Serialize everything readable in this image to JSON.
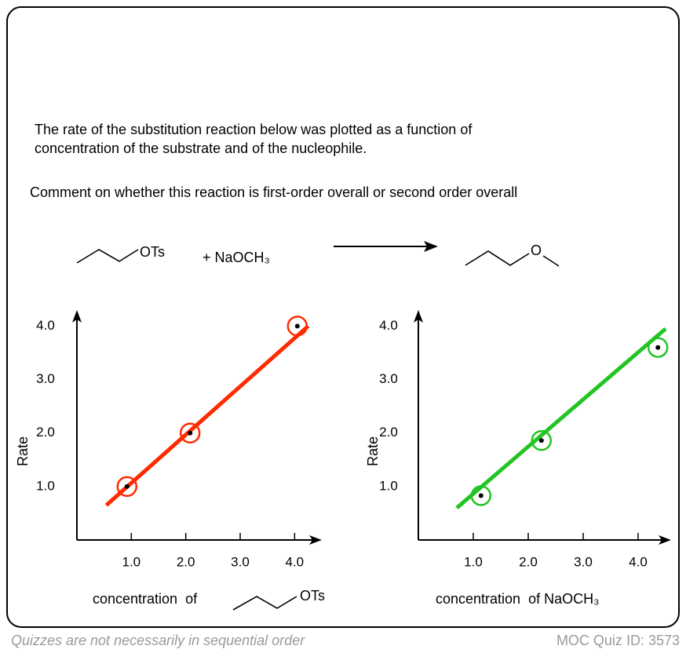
{
  "question": [
    "The rate of the substitution reaction below was plotted as a function of",
    "concentration of the substrate and of the nucleophile."
  ],
  "prompt": "Comment on whether this reaction is first-order overall or second order overall",
  "reaction": {
    "substrate_group": "OTs",
    "reagent": "+ NaOCH₃",
    "product_atom": "O"
  },
  "chart_data": [
    {
      "type": "scatter",
      "y_label": "Rate",
      "x_label": "concentration  of",
      "x_label_group": "OTs",
      "x": [
        0.92,
        2.08,
        4.05
      ],
      "values": [
        1.0,
        2.0,
        4.0
      ],
      "color": "#ff2a00",
      "fit_line": {
        "x": [
          0.54,
          4.25
        ],
        "y": [
          0.65,
          4.0
        ]
      },
      "xlim": [
        0,
        4.5
      ],
      "ylim": [
        0,
        4.3
      ],
      "xticks": [
        {
          "value": 1,
          "label": "1.0"
        },
        {
          "value": 2,
          "label": "2.0"
        },
        {
          "value": 3,
          "label": "3.0"
        },
        {
          "value": 4,
          "label": "4.0"
        }
      ],
      "yticks": [
        {
          "value": 1,
          "label": "1.0"
        },
        {
          "value": 2,
          "label": "2.0"
        },
        {
          "value": 3,
          "label": "3.0"
        },
        {
          "value": 4,
          "label": "4.0"
        }
      ]
    },
    {
      "type": "scatter",
      "y_label": "Rate",
      "x_label": "concentration  of NaOCH₃",
      "x": [
        1.14,
        2.24,
        4.36
      ],
      "values": [
        0.83,
        1.86,
        3.6
      ],
      "color": "#22c422",
      "fit_line": {
        "x": [
          0.7,
          4.5
        ],
        "y": [
          0.6,
          3.95
        ]
      },
      "xlim": [
        0,
        4.6
      ],
      "ylim": [
        0,
        4.3
      ],
      "xticks": [
        {
          "value": 1,
          "label": "1.0"
        },
        {
          "value": 2,
          "label": "2.0"
        },
        {
          "value": 3,
          "label": "3.0"
        },
        {
          "value": 4,
          "label": "4.0"
        }
      ],
      "yticks": [
        {
          "value": 1,
          "label": "1.0"
        },
        {
          "value": 2,
          "label": "2.0"
        },
        {
          "value": 3,
          "label": "3.0"
        },
        {
          "value": 4,
          "label": "4.0"
        }
      ]
    }
  ],
  "footer": {
    "note": "Quizzes are not necessarily in sequential order",
    "quiz_id": "MOC Quiz ID: 3573"
  }
}
